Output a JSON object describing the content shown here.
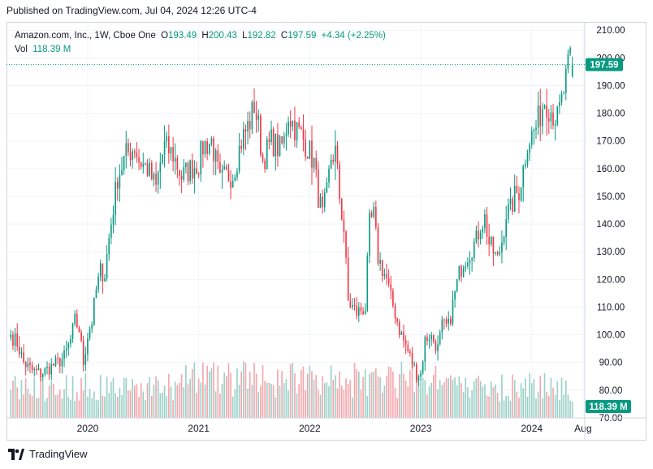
{
  "header": {
    "published": "Published on TradingView.com, Jul 04, 2024 12:26 UTC-4"
  },
  "legend": {
    "symbol": "Amazon.com, Inc., 1W, Cboe One",
    "open_label": "O",
    "open": "193.49",
    "high_label": "H",
    "high": "200.43",
    "low_label": "L",
    "low": "192.82",
    "close_label": "C",
    "close": "197.59",
    "change": "+4.34 (+2.25%)",
    "vol_label": "Vol",
    "vol": "118.39 M"
  },
  "footer": {
    "brand": "TradingView",
    "logo": "tradingview-logo-icon"
  },
  "colors": {
    "up": "#089981",
    "down": "#f23645",
    "vol_up": "#9ad0c7",
    "vol_down": "#f5a6ab",
    "grid": "#f0f3fa",
    "text": "#131722"
  },
  "chart_data": {
    "type": "candlestick",
    "title": "Amazon.com, Inc., 1W, Cboe One",
    "interval": "1W",
    "y_axis": {
      "side": "right",
      "range": [
        70,
        213
      ],
      "ticks": [
        "70.00",
        "80.00",
        "90.00",
        "100.00",
        "110.00",
        "120.00",
        "130.00",
        "140.00",
        "150.00",
        "160.00",
        "170.00",
        "180.00",
        "190.00",
        "200.00",
        "210.00"
      ]
    },
    "x_axis": {
      "labels": [
        {
          "label": "2020",
          "index": 36
        },
        {
          "label": "2021",
          "index": 88
        },
        {
          "label": "2022",
          "index": 140
        },
        {
          "label": "2023",
          "index": 192
        },
        {
          "label": "2024",
          "index": 244
        },
        {
          "label": "Aug",
          "index": 268
        }
      ]
    },
    "last_price": "197.59",
    "last_volume": "118.39 M",
    "anchors": [
      [
        0,
        100
      ],
      [
        3,
        97
      ],
      [
        6,
        90
      ],
      [
        10,
        87
      ],
      [
        14,
        86
      ],
      [
        18,
        88
      ],
      [
        22,
        90
      ],
      [
        25,
        92
      ],
      [
        28,
        98
      ],
      [
        30,
        105
      ],
      [
        32,
        102
      ],
      [
        34,
        90
      ],
      [
        36,
        100
      ],
      [
        38,
        105
      ],
      [
        40,
        116
      ],
      [
        42,
        123
      ],
      [
        44,
        122
      ],
      [
        46,
        135
      ],
      [
        50,
        157
      ],
      [
        54,
        165
      ],
      [
        58,
        168
      ],
      [
        60,
        163
      ],
      [
        64,
        160
      ],
      [
        68,
        153
      ],
      [
        70,
        162
      ],
      [
        72,
        168
      ],
      [
        76,
        165
      ],
      [
        80,
        157
      ],
      [
        84,
        160
      ],
      [
        88,
        162
      ],
      [
        90,
        168
      ],
      [
        94,
        170
      ],
      [
        98,
        155
      ],
      [
        100,
        157
      ],
      [
        104,
        158
      ],
      [
        108,
        170
      ],
      [
        112,
        177
      ],
      [
        114,
        183
      ],
      [
        116,
        175
      ],
      [
        118,
        163
      ],
      [
        122,
        170
      ],
      [
        126,
        167
      ],
      [
        128,
        170
      ],
      [
        130,
        180
      ],
      [
        133,
        175
      ],
      [
        136,
        172
      ],
      [
        140,
        166
      ],
      [
        142,
        162
      ],
      [
        144,
        150
      ],
      [
        146,
        143
      ],
      [
        148,
        151
      ],
      [
        150,
        164
      ],
      [
        152,
        166
      ],
      [
        154,
        150
      ],
      [
        156,
        138
      ],
      [
        158,
        112
      ],
      [
        160,
        110
      ],
      [
        162,
        108
      ],
      [
        166,
        110
      ],
      [
        168,
        140
      ],
      [
        170,
        143
      ],
      [
        172,
        128
      ],
      [
        176,
        120
      ],
      [
        178,
        113
      ],
      [
        180,
        108
      ],
      [
        182,
        102
      ],
      [
        184,
        98
      ],
      [
        186,
        94
      ],
      [
        188,
        90
      ],
      [
        190,
        86
      ],
      [
        192,
        86
      ],
      [
        194,
        98
      ],
      [
        196,
        100
      ],
      [
        198,
        98
      ],
      [
        200,
        95
      ],
      [
        202,
        103
      ],
      [
        205,
        103
      ],
      [
        208,
        115
      ],
      [
        210,
        122
      ],
      [
        212,
        127
      ],
      [
        214,
        129
      ],
      [
        218,
        134
      ],
      [
        220,
        140
      ],
      [
        222,
        142
      ],
      [
        224,
        133
      ],
      [
        226,
        130
      ],
      [
        228,
        127
      ],
      [
        230,
        134
      ],
      [
        232,
        144
      ],
      [
        234,
        145
      ],
      [
        236,
        150
      ],
      [
        238,
        152
      ],
      [
        240,
        160
      ],
      [
        242,
        170
      ],
      [
        244,
        172
      ],
      [
        246,
        175
      ],
      [
        248,
        180
      ],
      [
        250,
        185
      ],
      [
        254,
        180
      ],
      [
        256,
        178
      ],
      [
        258,
        184
      ],
      [
        260,
        192
      ],
      [
        262,
        200
      ],
      [
        263,
        197.59
      ]
    ],
    "low_point": {
      "index": 191,
      "low": 81.43
    },
    "high_point": {
      "index": 262,
      "high": 200.43
    },
    "volume_unit": "M",
    "volume_range": [
      0,
      1000
    ],
    "last_candle": {
      "open": 193.49,
      "high": 200.43,
      "low": 192.82,
      "close": 197.59,
      "volume": 118.39
    }
  }
}
